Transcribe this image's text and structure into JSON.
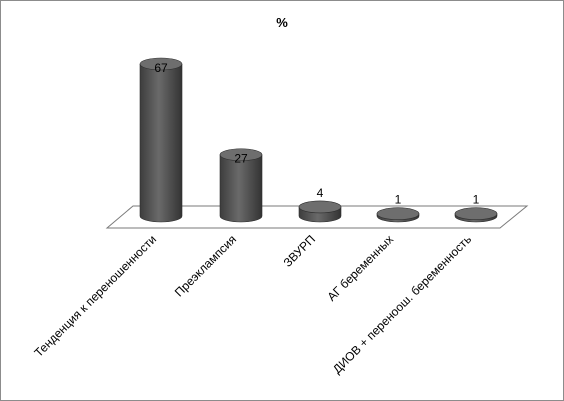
{
  "chart_data": {
    "type": "bar",
    "style": "3d-cylinder",
    "title": "%",
    "xlabel": "",
    "ylabel": "",
    "categories": [
      "Тенденция к перенoшенности",
      "Преэклампсия",
      "ЗВУРП",
      "АГ  беременных",
      "ДИОВ + переноош. беременность"
    ],
    "values": [
      67,
      27,
      4,
      1,
      1
    ],
    "data_labels": [
      "67",
      "27",
      "4",
      "1",
      "1"
    ],
    "ylim": [
      0,
      70
    ],
    "grid": false,
    "legend": "none",
    "colors": {
      "bar": "#5a5a5a",
      "bar_top": "#6e6e6e",
      "floor": "#ffffff",
      "floor_edge": "#7a7a7a"
    }
  }
}
